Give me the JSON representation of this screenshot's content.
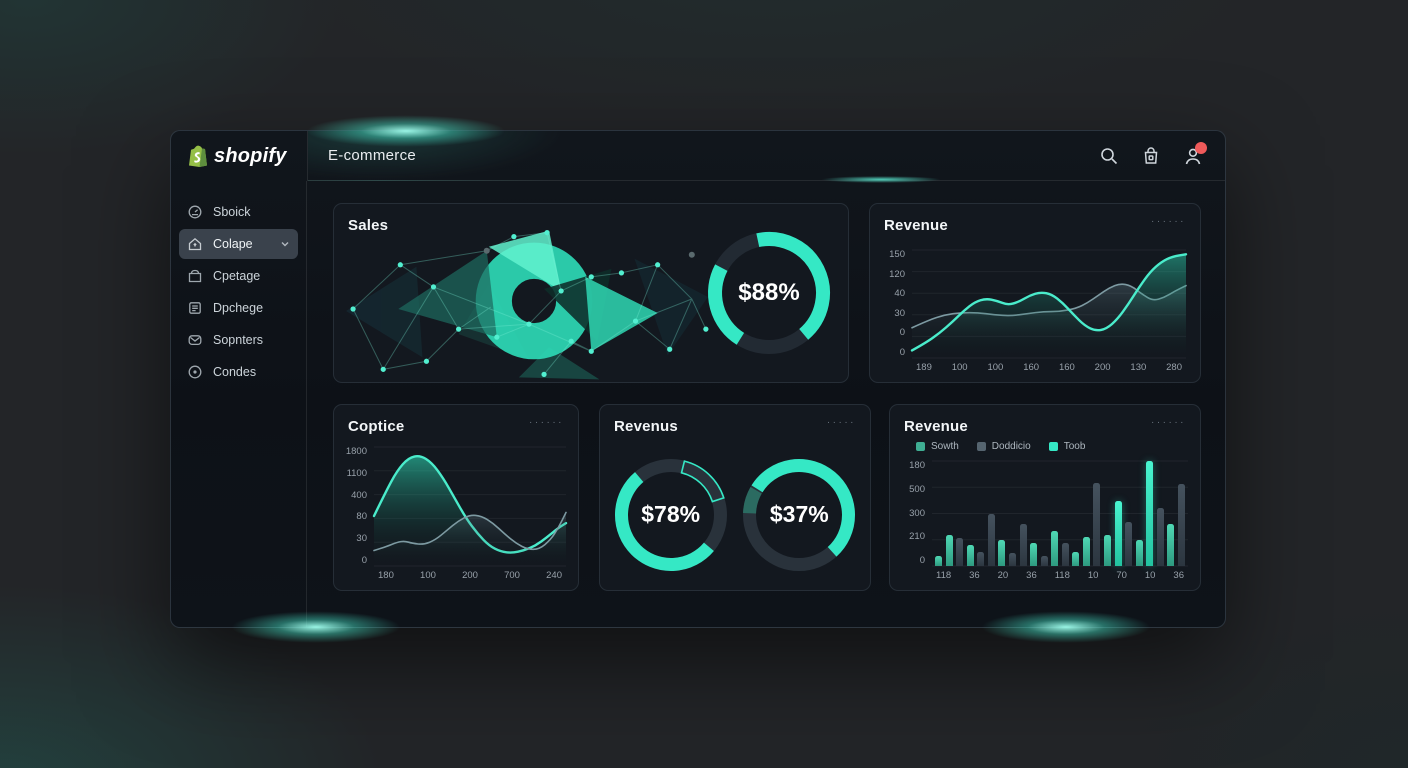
{
  "brand": {
    "name": "shopify",
    "bag_color": "#95bf47"
  },
  "header": {
    "title": "E-commerce",
    "icons": [
      "search",
      "cart",
      "user"
    ],
    "notification_color": "#ef5a5a"
  },
  "sidebar": {
    "items": [
      {
        "label": "Sboick",
        "icon": "gauge-icon",
        "selected": false
      },
      {
        "label": "Colape",
        "icon": "home-icon",
        "selected": true
      },
      {
        "label": "Cpetage",
        "icon": "box-icon",
        "selected": false
      },
      {
        "label": "Dpchege",
        "icon": "note-icon",
        "selected": false
      },
      {
        "label": "Sopnters",
        "icon": "mail-icon",
        "selected": false
      },
      {
        "label": "Condes",
        "icon": "target-icon",
        "selected": false
      }
    ]
  },
  "accent": "#35e8c5",
  "cards": {
    "sales": {
      "title": "Sales",
      "donut": {
        "label": "$88%",
        "color": "#35e8c5",
        "track": "#222a33",
        "segments": [
          {
            "start": -12,
            "sweep": 152
          },
          {
            "start": 212,
            "sweep": 86
          }
        ]
      }
    },
    "revenue_top": {
      "title": "Revenue",
      "menu_dots": "······",
      "chart": {
        "type": "area",
        "y_ticks": [
          "150",
          "120",
          "40",
          "30",
          "0",
          "0"
        ],
        "x_ticks": [
          "189",
          "100",
          "100",
          "160",
          "160",
          "200",
          "130",
          "280"
        ],
        "series": [
          {
            "name": "secondary",
            "color": "#7d9aa2",
            "fill": "rgba(108,140,150,0.30)",
            "points": [
              [
                0,
                72
              ],
              [
                6,
                65
              ],
              [
                12,
                60
              ],
              [
                18,
                58
              ],
              [
                24,
                58
              ],
              [
                30,
                60
              ],
              [
                36,
                61
              ],
              [
                42,
                59
              ],
              [
                48,
                57
              ],
              [
                54,
                57
              ],
              [
                60,
                54
              ],
              [
                64,
                49
              ],
              [
                68,
                42
              ],
              [
                72,
                35
              ],
              [
                76,
                31
              ],
              [
                80,
                33
              ],
              [
                84,
                41
              ],
              [
                88,
                47
              ],
              [
                92,
                44
              ],
              [
                96,
                38
              ],
              [
                100,
                33
              ]
            ]
          },
          {
            "name": "primary",
            "color": "#4aeccb",
            "fill": "rgba(46,230,191,0.45)",
            "points": [
              [
                0,
                93
              ],
              [
                5,
                86
              ],
              [
                10,
                77
              ],
              [
                15,
                66
              ],
              [
                19,
                56
              ],
              [
                23,
                48
              ],
              [
                27,
                45
              ],
              [
                31,
                47
              ],
              [
                35,
                51
              ],
              [
                39,
                48
              ],
              [
                43,
                42
              ],
              [
                47,
                39
              ],
              [
                51,
                41
              ],
              [
                55,
                49
              ],
              [
                59,
                60
              ],
              [
                63,
                70
              ],
              [
                67,
                75
              ],
              [
                71,
                73
              ],
              [
                75,
                64
              ],
              [
                79,
                50
              ],
              [
                83,
                34
              ],
              [
                87,
                20
              ],
              [
                91,
                11
              ],
              [
                95,
                6
              ],
              [
                100,
                4
              ]
            ]
          }
        ]
      }
    },
    "coptice": {
      "title": "Coptice",
      "menu_dots": "······",
      "chart": {
        "type": "area",
        "y_ticks": [
          "1800",
          "1100",
          "400",
          "80",
          "30",
          "0"
        ],
        "x_ticks": [
          "180",
          "100",
          "200",
          "700",
          "240"
        ],
        "series": [
          {
            "name": "primary",
            "color": "#4aeccb",
            "fill": "rgba(46,230,191,0.55)",
            "points": [
              [
                0,
                58
              ],
              [
                6,
                38
              ],
              [
                12,
                20
              ],
              [
                18,
                9
              ],
              [
                24,
                7
              ],
              [
                30,
                13
              ],
              [
                36,
                26
              ],
              [
                42,
                43
              ],
              [
                48,
                60
              ],
              [
                54,
                73
              ],
              [
                60,
                83
              ],
              [
                66,
                88
              ],
              [
                72,
                89
              ],
              [
                78,
                87
              ],
              [
                84,
                83
              ],
              [
                90,
                76
              ],
              [
                96,
                68
              ],
              [
                100,
                64
              ]
            ]
          },
          {
            "name": "secondary",
            "color": "#7d9aa2",
            "fill": "rgba(108,140,150,0.28)",
            "points": [
              [
                0,
                87
              ],
              [
                6,
                84
              ],
              [
                12,
                80
              ],
              [
                16,
                79
              ],
              [
                20,
                81
              ],
              [
                26,
                82
              ],
              [
                32,
                78
              ],
              [
                38,
                70
              ],
              [
                44,
                62
              ],
              [
                50,
                57
              ],
              [
                56,
                58
              ],
              [
                62,
                64
              ],
              [
                68,
                73
              ],
              [
                74,
                81
              ],
              [
                80,
                86
              ],
              [
                86,
                86
              ],
              [
                92,
                78
              ],
              [
                96,
                68
              ],
              [
                100,
                55
              ]
            ]
          }
        ]
      }
    },
    "revenus": {
      "title": "Revenus",
      "menu_dots": "·····",
      "donut_left": {
        "label": "$78%",
        "color": "#35e8c5",
        "track": "#29323b",
        "segments": [
          {
            "start": 130,
            "sweep": 190
          }
        ],
        "outline": {
          "start": 14,
          "sweep": 58
        }
      },
      "donut_right": {
        "label": "$37%",
        "color": "#35e8c5",
        "track": "#29323b",
        "segments": [
          {
            "start": -58,
            "sweep": 196
          },
          {
            "start": -88,
            "sweep": 28,
            "color": "#2b6b61"
          }
        ]
      }
    },
    "revenue_bars": {
      "title": "Revenue",
      "menu_dots": "······",
      "legend": [
        {
          "label": "Sowth",
          "color": "#3fae93"
        },
        {
          "label": "Doddicio",
          "color": "#55646f"
        },
        {
          "label": "Toob",
          "color": "#35e8c5"
        }
      ],
      "chart": {
        "type": "bar",
        "y_ticks": [
          "180",
          "500",
          "300",
          "210",
          "0"
        ],
        "x_ticks": [
          "118",
          "36",
          "20",
          "36",
          "118",
          "10",
          "70",
          "10",
          "36"
        ],
        "bars": [
          {
            "v": 10,
            "c": "g"
          },
          {
            "v": 30,
            "c": "g"
          },
          {
            "v": 27,
            "c": "s"
          },
          {
            "v": 20,
            "c": "g"
          },
          {
            "v": 13,
            "c": "s"
          },
          {
            "v": 50,
            "c": "s"
          },
          {
            "v": 25,
            "c": "g"
          },
          {
            "v": 12,
            "c": "s"
          },
          {
            "v": 40,
            "c": "s"
          },
          {
            "v": 22,
            "c": "g"
          },
          {
            "v": 10,
            "c": "s"
          },
          {
            "v": 33,
            "c": "g"
          },
          {
            "v": 22,
            "c": "s"
          },
          {
            "v": 13,
            "c": "g"
          },
          {
            "v": 28,
            "c": "g"
          },
          {
            "v": 79,
            "c": "s"
          },
          {
            "v": 30,
            "c": "g"
          },
          {
            "v": 62,
            "c": "G"
          },
          {
            "v": 42,
            "c": "s"
          },
          {
            "v": 25,
            "c": "g"
          },
          {
            "v": 100,
            "c": "G"
          },
          {
            "v": 55,
            "c": "s"
          },
          {
            "v": 40,
            "c": "g"
          },
          {
            "v": 78,
            "c": "s"
          }
        ]
      }
    }
  }
}
